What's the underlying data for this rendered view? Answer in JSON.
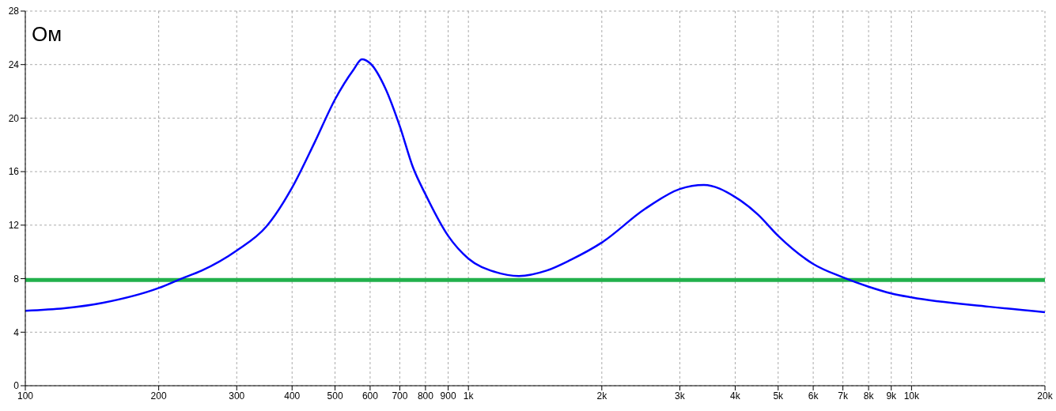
{
  "chart_data": {
    "type": "line",
    "ylabel": "Ом",
    "x": [
      100,
      150,
      200,
      225,
      250,
      300,
      350,
      400,
      450,
      500,
      550,
      575,
      600,
      650,
      700,
      750,
      800,
      900,
      1000,
      1150,
      1300,
      1500,
      1700,
      2000,
      2500,
      3000,
      3400,
      4000,
      4500,
      5000,
      6000,
      7000,
      8000,
      9000,
      10000,
      15000,
      20000
    ],
    "series": [
      {
        "color": "#0000ff",
        "values": [
          5.6,
          6.2,
          7.3,
          8.0,
          8.6,
          10.1,
          11.9,
          14.8,
          18.2,
          21.4,
          23.6,
          24.4,
          24.1,
          22.2,
          19.4,
          16.3,
          14.3,
          11.2,
          9.5,
          8.5,
          8.2,
          8.6,
          9.4,
          10.7,
          13.2,
          14.7,
          15.0,
          14.1,
          12.8,
          11.2,
          9.1,
          8.1,
          7.4,
          6.9,
          6.6,
          5.9,
          5.5
        ]
      }
    ],
    "log": "x",
    "xlim": [
      100,
      20000
    ],
    "xticks": [
      100,
      200,
      300,
      400,
      500,
      600,
      700,
      800,
      900,
      {
        "value": 1000,
        "label": "1k"
      },
      {
        "value": 2000,
        "label": "2k"
      },
      {
        "value": 3000,
        "label": "3k"
      },
      {
        "value": 4000,
        "label": "4k"
      },
      {
        "value": 5000,
        "label": "5k"
      },
      {
        "value": 6000,
        "label": "6k"
      },
      {
        "value": 7000,
        "label": "7k"
      },
      {
        "value": 8000,
        "label": "8k"
      },
      {
        "value": 9000,
        "label": "9k"
      },
      {
        "value": 10000,
        "label": "10k"
      },
      {
        "value": 20000,
        "label": "20k"
      }
    ],
    "ylim": [
      0,
      28
    ],
    "yticks": [
      0,
      4,
      8,
      12,
      16,
      20,
      24,
      28
    ],
    "grid": true,
    "marker": "none",
    "line_style": "solid",
    "ref_lines": [
      {
        "axis": "y",
        "value": 7.9,
        "color": "#22b14c"
      }
    ]
  }
}
